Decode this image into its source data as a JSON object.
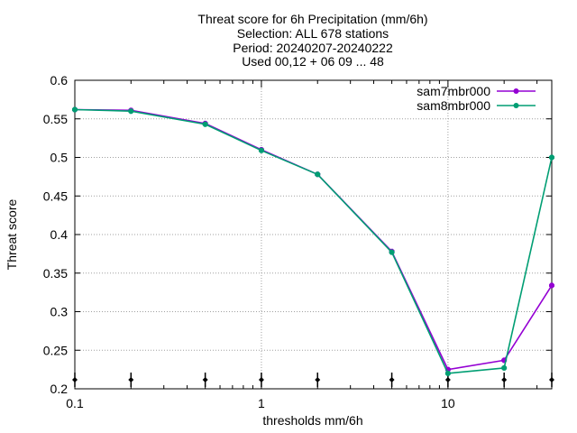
{
  "chart_data": {
    "type": "line",
    "title_lines": [
      "Threat score  for 6h Precipitation (mm/6h)",
      "Selection: ALL    678 stations",
      "Period: 20240207-20240222",
      "Used 00,12 + 06 09 ... 48"
    ],
    "xlabel": "thresholds mm/6h",
    "ylabel": "Threat score",
    "x_scale": "log",
    "xlim": [
      0.1,
      36
    ],
    "ylim": [
      0.2,
      0.6
    ],
    "x_ticks": [
      0.1,
      1,
      10
    ],
    "x_tick_labels": [
      "0.1",
      "1",
      "10"
    ],
    "y_ticks": [
      0.2,
      0.25,
      0.3,
      0.35,
      0.4,
      0.45,
      0.5,
      0.55,
      0.6
    ],
    "y_tick_labels": [
      "0.2",
      "0.25",
      "0.3",
      "0.35",
      "0.4",
      "0.45",
      "0.5",
      "0.55",
      "0.6"
    ],
    "grid": true,
    "legend_position": "top-right",
    "bottom_markers_x": [
      0.1,
      0.2,
      0.5,
      1,
      2,
      5,
      10,
      20,
      36
    ],
    "x": [
      0.1,
      0.2,
      0.5,
      1,
      2,
      5,
      10,
      20,
      36
    ],
    "series": [
      {
        "name": "sam7mbr000",
        "color": "#9400d3",
        "values": [
          0.562,
          0.561,
          0.544,
          0.51,
          0.478,
          0.378,
          0.225,
          0.237,
          0.334
        ]
      },
      {
        "name": "sam8mbr000",
        "color": "#009e73",
        "values": [
          0.562,
          0.56,
          0.543,
          0.509,
          0.478,
          0.377,
          0.22,
          0.227,
          0.5
        ]
      }
    ]
  }
}
